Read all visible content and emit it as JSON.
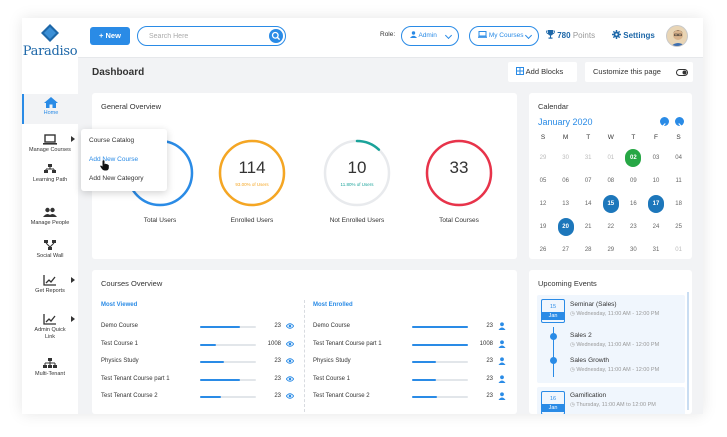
{
  "sidebar": {
    "logo_text": "Paradiso",
    "items": [
      {
        "label": "Home",
        "icon": "home-icon",
        "active": true
      },
      {
        "label": "Manage Courses",
        "icon": "laptop-icon",
        "submenu": true
      },
      {
        "label": "Learning Path",
        "icon": "path-icon"
      },
      {
        "label": "Manage People",
        "icon": "people-icon"
      },
      {
        "label": "Social Wall",
        "icon": "network-icon"
      },
      {
        "label": "Get Reports",
        "icon": "chart-icon",
        "submenu": true
      },
      {
        "label": "Admin Quick",
        "label2": "Link",
        "icon": "chart-icon",
        "submenu": true
      },
      {
        "label": "Multi-Tenant",
        "icon": "tenant-icon"
      }
    ]
  },
  "topbar": {
    "new_label": "New",
    "search_placeholder": "Search Here",
    "role_label": "Role:",
    "role_value": "Admin",
    "courses_value": "My Courses",
    "points_value": "780",
    "points_suffix": "Points",
    "settings_label": "Settings"
  },
  "dashboard": {
    "title": "Dashboard",
    "add_blocks_label": "Add Blocks",
    "customize_label": "Customize this page"
  },
  "manage_courses_menu": [
    "Course Catalog",
    "Add New Course",
    "Add New Category"
  ],
  "general_overview": {
    "title": "General Overview",
    "stats": [
      {
        "value": "",
        "caption": "Total Users",
        "color": "#2a8be6",
        "fraction": 1.0,
        "note": ""
      },
      {
        "value": "114",
        "caption": "Enrolled Users",
        "color": "#f5a623",
        "fraction": 1.0,
        "note": "93.00% of Users"
      },
      {
        "value": "10",
        "caption": "Not Enrolled Users",
        "color": "#1aa39a",
        "fraction": 0.12,
        "note": "11.80% of Users"
      },
      {
        "value": "33",
        "caption": "Total Courses",
        "color": "#e8334a",
        "fraction": 1.0,
        "note": ""
      }
    ],
    "colors": {
      "enrolled_note": "#f5a623",
      "not_enrolled_note": "#1aa39a"
    }
  },
  "calendar": {
    "title": "Calendar",
    "month": "January 2020",
    "dow": [
      "S",
      "M",
      "T",
      "W",
      "T",
      "F",
      "S"
    ],
    "weeks": [
      [
        "29",
        "30",
        "31",
        "01",
        "02",
        "03",
        "04"
      ],
      [
        "05",
        "06",
        "07",
        "08",
        "09",
        "10",
        "11"
      ],
      [
        "12",
        "13",
        "14",
        "15",
        "16",
        "17",
        "18"
      ],
      [
        "19",
        "20",
        "21",
        "22",
        "23",
        "24",
        "25"
      ],
      [
        "26",
        "27",
        "28",
        "29",
        "30",
        "31",
        "01"
      ]
    ],
    "muted": [
      [
        0,
        0
      ],
      [
        0,
        1
      ],
      [
        0,
        2
      ],
      [
        0,
        3
      ],
      [
        4,
        6
      ]
    ],
    "today": [
      0,
      4
    ],
    "selected": [
      [
        2,
        3
      ],
      [
        2,
        5
      ],
      [
        3,
        1
      ]
    ]
  },
  "courses_overview": {
    "title": "Courses Overview",
    "most_viewed_label": "Most Viewed",
    "most_enrolled_label": "Most Enrolled",
    "most_viewed": [
      {
        "name": "Demo Course",
        "value": "23",
        "fraction": 0.72
      },
      {
        "name": "Test Course 1",
        "value": "1008",
        "fraction": 0.28
      },
      {
        "name": "Physics Study",
        "value": "23",
        "fraction": 0.42
      },
      {
        "name": "Test Tenant Course part 1",
        "value": "23",
        "fraction": 0.72
      },
      {
        "name": "Test Tenant Course 2",
        "value": "23",
        "fraction": 0.38
      }
    ],
    "most_enrolled": [
      {
        "name": "Demo Course",
        "value": "23",
        "fraction": 1.0
      },
      {
        "name": "Test Tenant Course part 1",
        "value": "1008",
        "fraction": 1.0
      },
      {
        "name": "Physics Study",
        "value": "23",
        "fraction": 0.42
      },
      {
        "name": "Test Course 1",
        "value": "23",
        "fraction": 0.42
      },
      {
        "name": "Test Tenant Course 2",
        "value": "23",
        "fraction": 0.45
      }
    ]
  },
  "upcoming_events": {
    "title": "Upcoming Events",
    "events": [
      {
        "day": "15",
        "month": "Jan",
        "items": [
          {
            "title": "Seminar (Sales)",
            "time": "Wednesday, 11:00 AM - 12:00 PM"
          },
          {
            "title": "Sales 2",
            "time": "Wednesday, 11:00 AM - 12:00 PM"
          },
          {
            "title": "Sales Growth",
            "time": "Wednesday, 11:00 AM - 12:00 PM"
          }
        ]
      },
      {
        "day": "16",
        "month": "Jan",
        "items": [
          {
            "title": "Gamification",
            "time": "Thursday, 11:00 AM to 12:00 PM"
          }
        ]
      }
    ]
  }
}
